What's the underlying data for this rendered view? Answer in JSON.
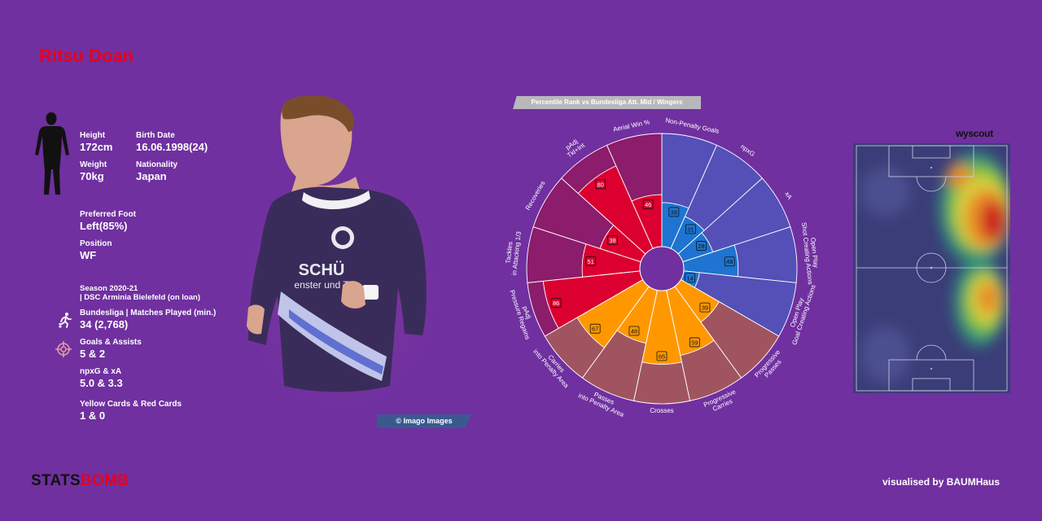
{
  "player": {
    "name": "Ritsu Doan"
  },
  "profile": {
    "height_label": "Height",
    "height_value": "172cm",
    "birth_label": "Birth Date",
    "birth_value": "16.06.1998(24)",
    "weight_label": "Weight",
    "weight_value": "70kg",
    "nationality_label": "Nationality",
    "nationality_value": "Japan",
    "foot_label": "Preferred Foot",
    "foot_value": "Left(85%)",
    "position_label": "Position",
    "position_value": "WF",
    "season_line1": "Season 2020-21",
    "season_line2": "| DSC Arminia Bielefeld (on loan)",
    "matches_label": "Bundesliga | Matches Played (min.)",
    "matches_value": "34 (2,768)",
    "goals_label": "Goals & Assists",
    "goals_value": "5 & 2",
    "xg_label": "npxG & xA",
    "xg_value": "5.0 & 3.3",
    "cards_label": "Yellow Cards & Red Cards",
    "cards_value": "1 & 0"
  },
  "photo_credit": "© Imago Images",
  "percentile_title": "Percentile Rank vs Bundesliga Att. Mid / Wingers",
  "heatmap_source": "wyscout",
  "footer": {
    "brand_a": "STATS",
    "brand_b": "BOMB",
    "credit": "visualised by BAUMHaus"
  },
  "colors": {
    "background": "#7030a0",
    "attacking": "#1e74d0",
    "attacking_bg": "#5450b8",
    "possession": "#ff9800",
    "possession_bg": "#a05460",
    "defending": "#db0030",
    "defending_bg": "#8c1c6c",
    "name": "#e8001c"
  },
  "icons": [
    "player-silhouette-icon",
    "running-player-icon",
    "target-icon",
    "player-photo"
  ],
  "chart_data": {
    "type": "pizza",
    "title": "Percentile Rank vs Bundesliga Att. Mid / Wingers",
    "range": [
      0,
      100
    ],
    "categories": [
      "Non-Penalty Goals",
      "npxG",
      "xA",
      "Open Play Shot Creating Actions",
      "Open Play Goal Creating Actions",
      "Progressive Passes",
      "Progressive Carries",
      "Crosses",
      "Passes into Penalty Area",
      "Carries into Penalty Area",
      "pAdj Pressure Regains",
      "Tackles in Attacking 1/3",
      "Recoveries",
      "pAdj Tkl+Int",
      "Aerial Win %"
    ],
    "label_lines": [
      [
        "Non-Penalty Goals"
      ],
      [
        "npxG"
      ],
      [
        "xA"
      ],
      [
        "Open Play",
        "Shot Creating Actions"
      ],
      [
        "Open Play",
        "Goal Creating Actions"
      ],
      [
        "Progressive",
        "Passes"
      ],
      [
        "Progressive",
        "Carries"
      ],
      [
        "Crosses"
      ],
      [
        "Passes",
        "into Penalty Area"
      ],
      [
        "Carries",
        "into Penalty Area"
      ],
      [
        "pAdj",
        "Pressure Regains"
      ],
      [
        "Tackles",
        "in Attacking 1/3"
      ],
      [
        "Recoveries"
      ],
      [
        "pAdj",
        "Tkl+Int"
      ],
      [
        "Aerial Win %"
      ]
    ],
    "values": [
      39,
      31,
      28,
      48,
      14,
      39,
      59,
      65,
      48,
      67,
      86,
      51,
      38,
      80,
      46
    ],
    "groups": [
      "attacking",
      "attacking",
      "attacking",
      "attacking",
      "attacking",
      "possession",
      "possession",
      "possession",
      "possession",
      "possession",
      "defending",
      "defending",
      "defending",
      "defending",
      "defending"
    ]
  }
}
